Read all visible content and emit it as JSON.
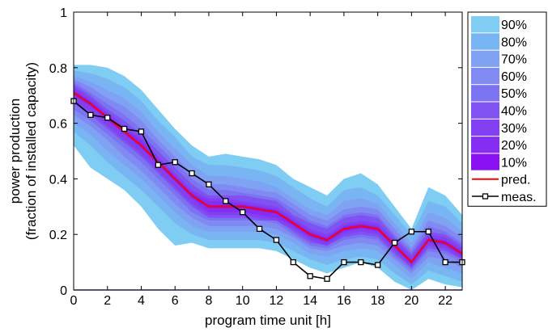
{
  "chart_data": {
    "type": "area",
    "title": "",
    "xlabel": "program time unit [h]",
    "ylabel_lines": [
      "power production",
      "(fraction of installed capacity)"
    ],
    "xlim": [
      0,
      23
    ],
    "ylim": [
      0,
      1
    ],
    "xticks": [
      0,
      2,
      4,
      6,
      8,
      10,
      12,
      14,
      16,
      18,
      20,
      22
    ],
    "yticks": [
      0,
      0.2,
      0.4,
      0.6,
      0.8,
      1
    ],
    "ytick_labels": [
      "0",
      "0.2",
      "0.4",
      "0.6",
      "0.8",
      "1"
    ],
    "grid": false,
    "legend_position": "outside-right",
    "x": [
      0,
      1,
      2,
      3,
      4,
      5,
      6,
      7,
      8,
      9,
      10,
      11,
      12,
      13,
      14,
      15,
      16,
      17,
      18,
      19,
      20,
      21,
      22,
      23
    ],
    "prediction": {
      "name": "pred.",
      "color": "#ff0000",
      "values": [
        0.71,
        0.67,
        0.62,
        0.57,
        0.52,
        0.46,
        0.4,
        0.34,
        0.3,
        0.3,
        0.3,
        0.29,
        0.28,
        0.24,
        0.2,
        0.18,
        0.22,
        0.23,
        0.22,
        0.16,
        0.1,
        0.18,
        0.17,
        0.13
      ]
    },
    "measurement": {
      "name": "meas.",
      "color": "#000000",
      "values": [
        0.68,
        0.63,
        0.62,
        0.58,
        0.57,
        0.45,
        0.46,
        0.42,
        0.38,
        0.32,
        0.28,
        0.22,
        0.18,
        0.1,
        0.05,
        0.04,
        0.1,
        0.1,
        0.09,
        0.17,
        0.21,
        0.21,
        0.1,
        0.1
      ]
    },
    "intervals": [
      {
        "name": "90%",
        "color": "#7fcdf2",
        "upper": [
          0.81,
          0.81,
          0.8,
          0.77,
          0.72,
          0.65,
          0.58,
          0.52,
          0.48,
          0.49,
          0.48,
          0.47,
          0.45,
          0.4,
          0.37,
          0.34,
          0.4,
          0.42,
          0.38,
          0.3,
          0.22,
          0.37,
          0.34,
          0.27
        ],
        "lower": [
          0.52,
          0.44,
          0.4,
          0.36,
          0.3,
          0.22,
          0.16,
          0.17,
          0.15,
          0.15,
          0.15,
          0.15,
          0.14,
          0.11,
          0.08,
          0.06,
          0.08,
          0.1,
          0.08,
          0.03,
          0.0,
          0.04,
          0.02,
          0.01
        ]
      },
      {
        "name": "80%",
        "color": "#79b5f2",
        "upper": [
          0.79,
          0.78,
          0.76,
          0.73,
          0.68,
          0.61,
          0.55,
          0.48,
          0.45,
          0.45,
          0.44,
          0.43,
          0.41,
          0.37,
          0.33,
          0.3,
          0.36,
          0.37,
          0.34,
          0.27,
          0.2,
          0.32,
          0.3,
          0.24
        ],
        "lower": [
          0.57,
          0.52,
          0.46,
          0.41,
          0.36,
          0.3,
          0.24,
          0.2,
          0.18,
          0.18,
          0.18,
          0.18,
          0.17,
          0.14,
          0.11,
          0.09,
          0.11,
          0.12,
          0.11,
          0.06,
          0.02,
          0.07,
          0.05,
          0.03
        ]
      },
      {
        "name": "70%",
        "color": "#7fa2f2",
        "upper": [
          0.77,
          0.75,
          0.72,
          0.69,
          0.64,
          0.57,
          0.51,
          0.45,
          0.41,
          0.41,
          0.4,
          0.39,
          0.37,
          0.33,
          0.29,
          0.27,
          0.32,
          0.33,
          0.31,
          0.24,
          0.17,
          0.28,
          0.26,
          0.21
        ],
        "lower": [
          0.6,
          0.56,
          0.5,
          0.45,
          0.4,
          0.34,
          0.28,
          0.23,
          0.21,
          0.21,
          0.21,
          0.21,
          0.2,
          0.17,
          0.13,
          0.12,
          0.14,
          0.15,
          0.14,
          0.09,
          0.04,
          0.1,
          0.08,
          0.06
        ]
      },
      {
        "name": "60%",
        "color": "#8189f2",
        "upper": [
          0.76,
          0.73,
          0.69,
          0.66,
          0.61,
          0.54,
          0.48,
          0.42,
          0.38,
          0.38,
          0.37,
          0.36,
          0.35,
          0.31,
          0.27,
          0.25,
          0.29,
          0.3,
          0.29,
          0.22,
          0.15,
          0.25,
          0.23,
          0.19
        ],
        "lower": [
          0.63,
          0.59,
          0.54,
          0.48,
          0.43,
          0.37,
          0.31,
          0.26,
          0.23,
          0.23,
          0.23,
          0.23,
          0.22,
          0.19,
          0.15,
          0.14,
          0.16,
          0.17,
          0.16,
          0.11,
          0.06,
          0.12,
          0.11,
          0.08
        ]
      },
      {
        "name": "50%",
        "color": "#7c73f2",
        "upper": [
          0.75,
          0.71,
          0.67,
          0.63,
          0.58,
          0.52,
          0.46,
          0.4,
          0.36,
          0.36,
          0.35,
          0.34,
          0.33,
          0.29,
          0.25,
          0.23,
          0.27,
          0.28,
          0.27,
          0.2,
          0.14,
          0.23,
          0.21,
          0.17
        ],
        "lower": [
          0.65,
          0.61,
          0.56,
          0.51,
          0.46,
          0.4,
          0.34,
          0.28,
          0.25,
          0.25,
          0.25,
          0.25,
          0.24,
          0.2,
          0.16,
          0.15,
          0.18,
          0.19,
          0.18,
          0.12,
          0.07,
          0.14,
          0.13,
          0.1
        ]
      },
      {
        "name": "40%",
        "color": "#8052f2",
        "upper": [
          0.74,
          0.7,
          0.65,
          0.61,
          0.56,
          0.5,
          0.44,
          0.38,
          0.34,
          0.34,
          0.34,
          0.33,
          0.32,
          0.27,
          0.24,
          0.22,
          0.26,
          0.27,
          0.26,
          0.19,
          0.13,
          0.21,
          0.2,
          0.16
        ],
        "lower": [
          0.67,
          0.63,
          0.58,
          0.53,
          0.48,
          0.42,
          0.36,
          0.3,
          0.26,
          0.26,
          0.26,
          0.25,
          0.25,
          0.21,
          0.17,
          0.16,
          0.19,
          0.2,
          0.19,
          0.13,
          0.08,
          0.15,
          0.14,
          0.11
        ]
      },
      {
        "name": "30%",
        "color": "#8340f2",
        "upper": [
          0.73,
          0.69,
          0.64,
          0.59,
          0.55,
          0.48,
          0.42,
          0.36,
          0.33,
          0.33,
          0.32,
          0.31,
          0.3,
          0.26,
          0.22,
          0.2,
          0.24,
          0.25,
          0.24,
          0.18,
          0.12,
          0.2,
          0.19,
          0.15
        ],
        "lower": [
          0.68,
          0.64,
          0.59,
          0.54,
          0.49,
          0.43,
          0.37,
          0.31,
          0.27,
          0.27,
          0.27,
          0.26,
          0.25,
          0.22,
          0.18,
          0.16,
          0.2,
          0.21,
          0.2,
          0.14,
          0.08,
          0.16,
          0.15,
          0.11
        ]
      },
      {
        "name": "20%",
        "color": "#852df2",
        "upper": [
          0.72,
          0.68,
          0.63,
          0.58,
          0.54,
          0.47,
          0.41,
          0.35,
          0.32,
          0.32,
          0.31,
          0.3,
          0.29,
          0.25,
          0.21,
          0.19,
          0.23,
          0.24,
          0.23,
          0.17,
          0.11,
          0.19,
          0.18,
          0.14
        ],
        "lower": [
          0.7,
          0.66,
          0.61,
          0.56,
          0.51,
          0.45,
          0.39,
          0.33,
          0.28,
          0.28,
          0.28,
          0.27,
          0.26,
          0.23,
          0.19,
          0.17,
          0.21,
          0.22,
          0.21,
          0.15,
          0.09,
          0.17,
          0.16,
          0.12
        ]
      },
      {
        "name": "10%",
        "color": "#8a12f2",
        "upper": [
          0.715,
          0.675,
          0.625,
          0.575,
          0.525,
          0.465,
          0.405,
          0.345,
          0.305,
          0.305,
          0.305,
          0.295,
          0.285,
          0.245,
          0.205,
          0.185,
          0.225,
          0.235,
          0.225,
          0.165,
          0.105,
          0.185,
          0.175,
          0.135
        ],
        "lower": [
          0.705,
          0.665,
          0.615,
          0.565,
          0.515,
          0.455,
          0.395,
          0.335,
          0.295,
          0.295,
          0.295,
          0.285,
          0.275,
          0.235,
          0.195,
          0.175,
          0.215,
          0.225,
          0.215,
          0.155,
          0.095,
          0.175,
          0.165,
          0.125
        ]
      }
    ]
  }
}
